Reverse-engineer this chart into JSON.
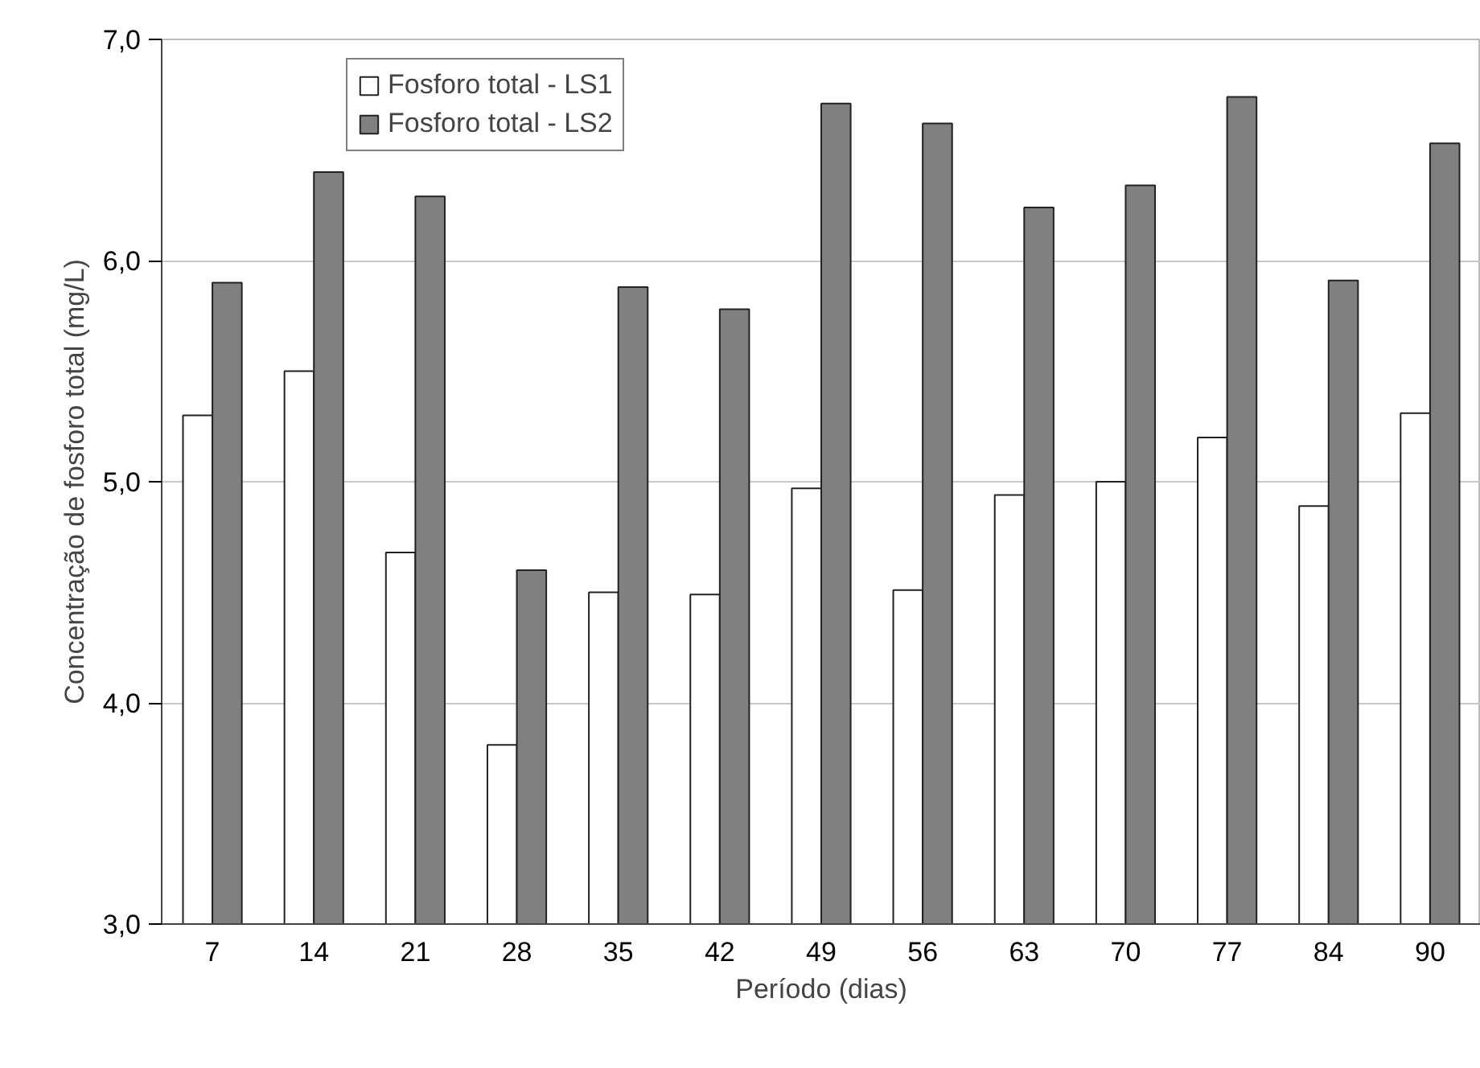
{
  "chart_data": {
    "type": "bar",
    "xlabel": "Período (dias)",
    "ylabel": "Concentração de fosforo total (mg/L)",
    "categories": [
      "7",
      "14",
      "21",
      "28",
      "35",
      "42",
      "49",
      "56",
      "63",
      "70",
      "77",
      "84",
      "90"
    ],
    "series": [
      {
        "name": "Fosforo total - LS1",
        "color": "#ffffff",
        "values": [
          5.3,
          5.5,
          4.68,
          3.81,
          4.5,
          4.49,
          4.97,
          4.51,
          4.94,
          5.0,
          5.2,
          4.89,
          5.31
        ]
      },
      {
        "name": "Fosforo total - LS2",
        "color": "#808080",
        "values": [
          5.9,
          6.4,
          6.29,
          4.6,
          5.88,
          5.78,
          6.71,
          6.62,
          6.24,
          6.34,
          6.74,
          5.91,
          6.53
        ]
      }
    ],
    "ylim": [
      3,
      7
    ],
    "yticks": [
      {
        "value": 3,
        "label": "3,0"
      },
      {
        "value": 4,
        "label": "4,0"
      },
      {
        "value": 5,
        "label": "5,0"
      },
      {
        "value": 6,
        "label": "6,0"
      },
      {
        "value": 7,
        "label": "7,0"
      }
    ],
    "grid": "y",
    "legend": "top left"
  }
}
